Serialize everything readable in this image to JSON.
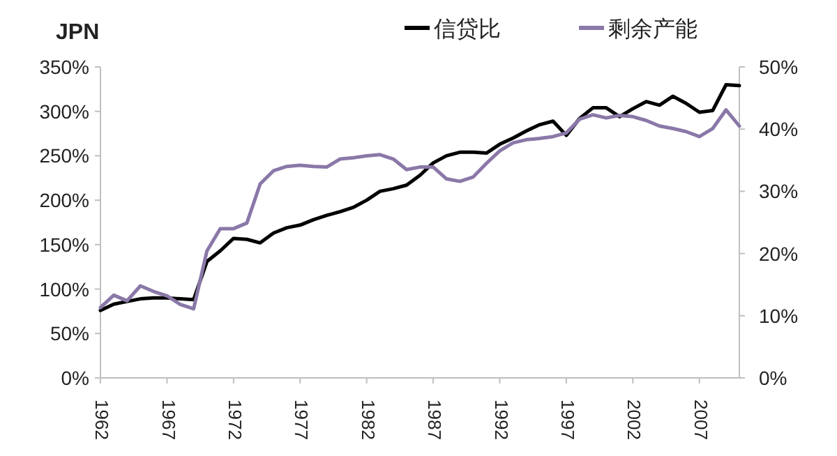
{
  "chart_data": {
    "type": "line",
    "title": "JPN",
    "legend": "top",
    "x": [
      1962,
      1963,
      1964,
      1965,
      1966,
      1967,
      1968,
      1969,
      1970,
      1971,
      1972,
      1973,
      1974,
      1975,
      1976,
      1977,
      1978,
      1979,
      1980,
      1981,
      1982,
      1983,
      1984,
      1985,
      1986,
      1987,
      1988,
      1989,
      1990,
      1991,
      1992,
      1993,
      1994,
      1995,
      1996,
      1997,
      1998,
      1999,
      2000,
      2001,
      2002,
      2003,
      2004,
      2005,
      2006,
      2007,
      2008,
      2009,
      2010
    ],
    "xlim": [
      1962,
      2010
    ],
    "xticks": [
      1962,
      1967,
      1972,
      1977,
      1982,
      1987,
      1992,
      1997,
      2002,
      2007
    ],
    "ylim": [
      0,
      350
    ],
    "yticks": [
      {
        "value": 0,
        "label": "0%"
      },
      {
        "value": 50,
        "label": "50%"
      },
      {
        "value": 100,
        "label": "100%"
      },
      {
        "value": 150,
        "label": "150%"
      },
      {
        "value": 200,
        "label": "200%"
      },
      {
        "value": 250,
        "label": "250%"
      },
      {
        "value": 300,
        "label": "300%"
      },
      {
        "value": 350,
        "label": "350%"
      }
    ],
    "y2lim": [
      0,
      50
    ],
    "y2ticks": [
      {
        "value": 0,
        "label": "0%"
      },
      {
        "value": 10,
        "label": "10%"
      },
      {
        "value": 20,
        "label": "20%"
      },
      {
        "value": 30,
        "label": "30%"
      },
      {
        "value": 40,
        "label": "40%"
      },
      {
        "value": 50,
        "label": "50%"
      }
    ],
    "series": [
      {
        "name": "信贷比",
        "color": "#000000",
        "values": [
          76,
          83,
          86,
          89,
          90,
          90,
          89,
          88,
          131,
          143,
          157,
          156,
          152,
          163,
          169,
          172,
          178,
          183,
          187,
          192,
          200,
          210,
          213,
          217,
          228,
          242,
          250,
          254,
          254,
          253,
          263,
          270,
          278,
          285,
          289,
          273,
          292,
          304,
          304,
          294,
          303,
          311,
          307,
          317,
          309,
          299,
          301,
          330,
          329
        ]
      },
      {
        "name": "剩余产能",
        "color": "#8a78a8",
        "axis": "y2",
        "values": [
          11.3,
          13.3,
          12.4,
          14.8,
          13.9,
          13.2,
          11.8,
          11.1,
          20.4,
          24.0,
          24.0,
          24.9,
          31.2,
          33.3,
          34.0,
          34.2,
          34.0,
          33.9,
          35.2,
          35.4,
          35.7,
          35.9,
          35.2,
          33.5,
          33.9,
          33.9,
          32.0,
          31.6,
          32.3,
          34.5,
          36.5,
          37.8,
          38.3,
          38.5,
          38.8,
          39.4,
          41.6,
          42.3,
          41.8,
          42.2,
          42.0,
          41.4,
          40.5,
          40.1,
          39.6,
          38.8,
          40.1,
          43.1,
          40.5
        ]
      }
    ]
  }
}
